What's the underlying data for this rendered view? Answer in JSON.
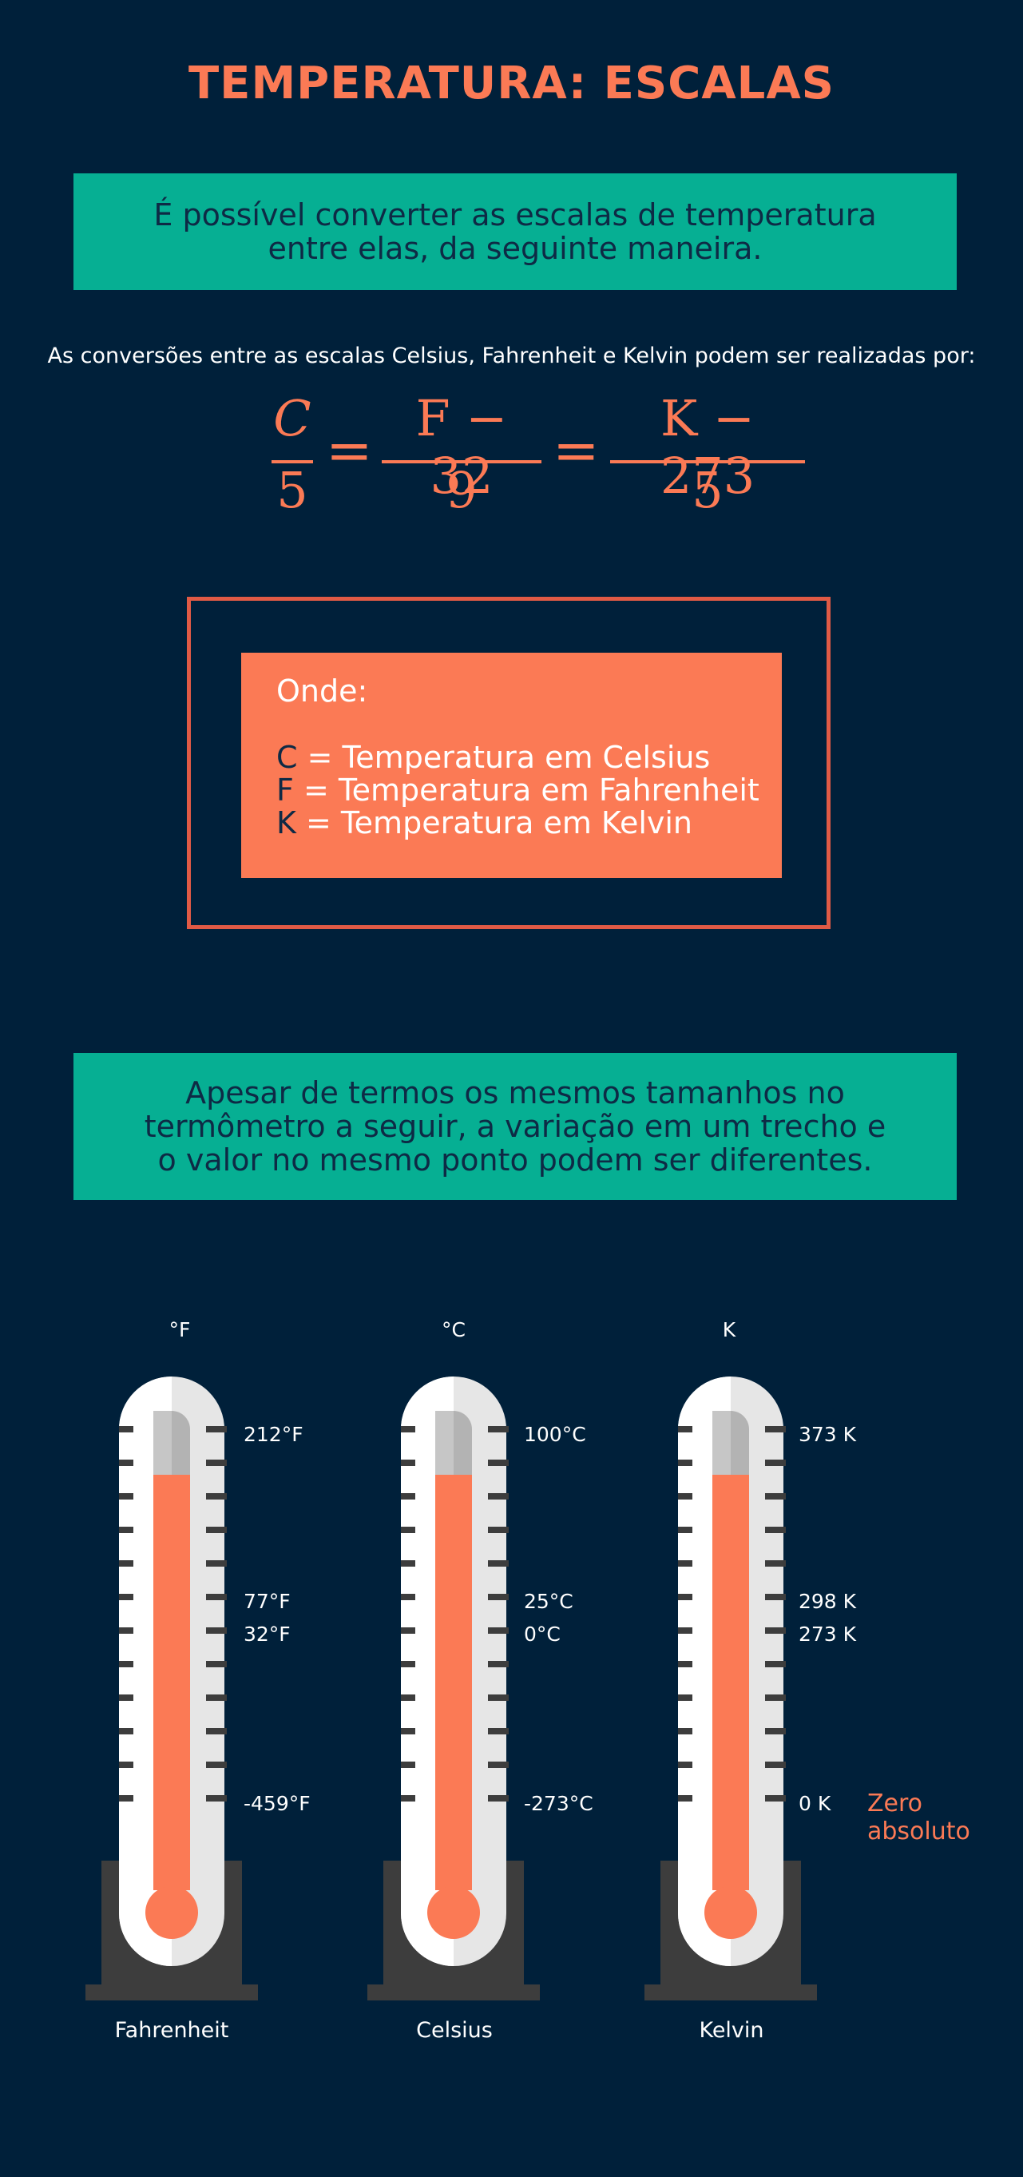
{
  "title": "TEMPERATURA: ESCALAS",
  "banner1": {
    "line1": "É possível converter as escalas de temperatura",
    "line2": "entre elas, da seguinte maneira."
  },
  "intro": "As conversões entre as escalas Celsius, Fahrenheit e Kelvin podem ser realizadas por:",
  "formula": {
    "c_num": "C",
    "c_den": "5",
    "f_num": "F − 32",
    "f_den": "9",
    "k_num": "K − 273",
    "k_den": "5",
    "equals": "="
  },
  "legend_box": {
    "heading": "Onde:",
    "rows": [
      {
        "symbol": "C",
        "text": " = Temperatura em Celsius"
      },
      {
        "symbol": "F",
        "text": " = Temperatura em Fahrenheit"
      },
      {
        "symbol": "K",
        "text": " = Temperatura em Kelvin"
      }
    ]
  },
  "banner2": {
    "line1": "Apesar de termos os mesmos tamanhos no",
    "line2": "termômetro a seguir, a variação em um trecho e",
    "line3": "o valor no mesmo ponto podem ser diferentes."
  },
  "thermometers": [
    {
      "unit": "°F",
      "name": "Fahrenheit",
      "labels": [
        "212°F",
        "77°F",
        "32°F",
        "-459°F"
      ]
    },
    {
      "unit": "°C",
      "name": "Celsius",
      "labels": [
        "100°C",
        "25°C",
        "0°C",
        "-273°C"
      ]
    },
    {
      "unit": "K",
      "name": "Kelvin",
      "labels": [
        "373 K",
        "298 K",
        "273 K",
        "0 K"
      ]
    }
  ],
  "zero_note": {
    "line1": "Zero",
    "line2": "absoluto"
  },
  "colors": {
    "background": "#00203a",
    "accent": "#fb7a55",
    "teal": "#06af93",
    "box_border": "#e05a45",
    "base": "#3d3d3d"
  }
}
